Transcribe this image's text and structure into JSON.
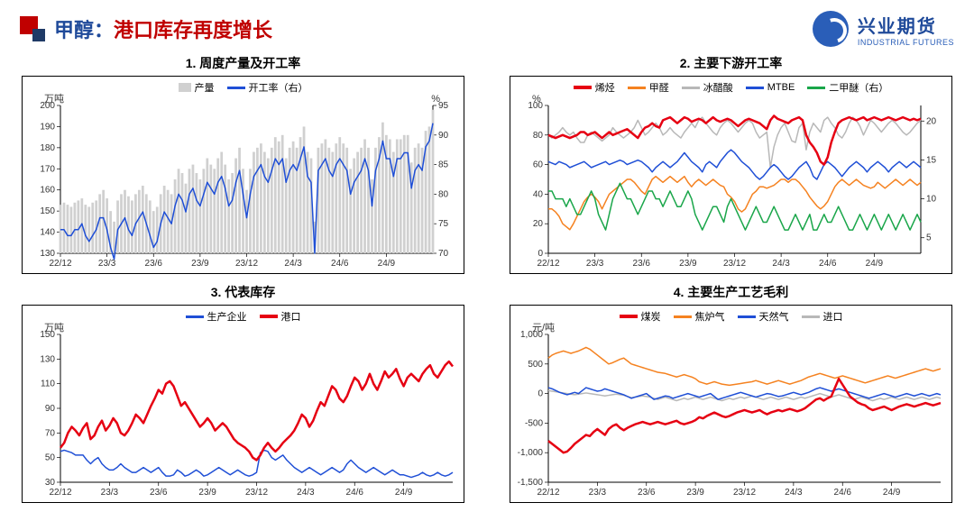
{
  "header": {
    "title_prefix": "甲醇：",
    "title_body": "港口库存再度增长",
    "logo_cn": "兴业期货",
    "logo_en": "INDUSTRIAL FUTURES"
  },
  "palette": {
    "blue": "#1f4fd6",
    "red": "#e60012",
    "orange": "#f58220",
    "grey": "#b8b8b8",
    "green": "#1aa64a",
    "lightgrey": "#d0d0d0",
    "darkblue": "#2050b0"
  },
  "x_ticks": [
    "22/12",
    "23/3",
    "23/6",
    "23/9",
    "23/12",
    "24/3",
    "24/6",
    "24/9"
  ],
  "x_count": 105,
  "chart1": {
    "title": "1. 周度产量及开工率",
    "legend": [
      {
        "label": "产量",
        "color": "#d0d0d0",
        "type": "bar"
      },
      {
        "label": "开工率（右）",
        "color": "#1f4fd6",
        "type": "line"
      }
    ],
    "left_unit": "万吨",
    "right_unit": "%",
    "left_ticks": [
      130,
      140,
      150,
      160,
      170,
      180,
      190,
      200
    ],
    "right_ticks": [
      70,
      75,
      80,
      85,
      90,
      95
    ],
    "left_range": [
      130,
      200
    ],
    "right_range": [
      70,
      95
    ],
    "bars": [
      153,
      154,
      153,
      152,
      154,
      155,
      156,
      153,
      152,
      154,
      155,
      158,
      160,
      156,
      150,
      145,
      155,
      158,
      160,
      157,
      155,
      158,
      160,
      162,
      158,
      155,
      150,
      152,
      158,
      162,
      160,
      158,
      165,
      170,
      168,
      163,
      170,
      172,
      168,
      165,
      170,
      175,
      172,
      170,
      175,
      178,
      172,
      165,
      168,
      175,
      180,
      170,
      160,
      170,
      178,
      180,
      182,
      178,
      175,
      180,
      185,
      183,
      186,
      175,
      180,
      183,
      180,
      185,
      190,
      178,
      175,
      145,
      180,
      182,
      184,
      180,
      178,
      182,
      185,
      182,
      180,
      170,
      175,
      178,
      180,
      184,
      180,
      165,
      180,
      185,
      192,
      186,
      184,
      178,
      184,
      184,
      186,
      186,
      173,
      180,
      182,
      180,
      188,
      190,
      198
    ],
    "line": [
      74,
      74,
      73,
      73,
      74,
      74,
      75,
      73,
      72,
      73,
      74,
      76,
      76,
      74,
      71,
      69,
      74,
      75,
      76,
      74,
      73,
      75,
      76,
      77,
      75,
      73,
      71,
      72,
      75,
      77,
      76,
      75,
      78,
      80,
      79,
      77,
      80,
      81,
      79,
      78,
      80,
      82,
      81,
      80,
      82,
      83,
      81,
      78,
      79,
      82,
      84,
      80,
      76,
      80,
      83,
      84,
      85,
      83,
      82,
      84,
      86,
      85,
      86,
      82,
      84,
      85,
      84,
      86,
      88,
      83,
      82,
      70,
      84,
      85,
      86,
      84,
      83,
      85,
      86,
      85,
      84,
      80,
      82,
      83,
      84,
      86,
      84,
      78,
      84,
      86,
      89,
      86,
      86,
      83,
      86,
      86,
      87,
      87,
      81,
      84,
      85,
      84,
      88,
      89,
      92
    ]
  },
  "chart2": {
    "title": "2. 主要下游开工率",
    "legend": [
      {
        "label": "烯烃",
        "color": "#e60012",
        "type": "line",
        "bold": true
      },
      {
        "label": "甲醛",
        "color": "#f58220",
        "type": "line"
      },
      {
        "label": "冰醋酸",
        "color": "#b8b8b8",
        "type": "line"
      },
      {
        "label": "MTBE",
        "color": "#1f4fd6",
        "type": "line"
      },
      {
        "label": "二甲醚（右）",
        "color": "#1aa64a",
        "type": "line"
      }
    ],
    "left_unit": "%",
    "right_unit": "",
    "left_ticks": [
      0,
      20,
      40,
      60,
      80,
      100
    ],
    "right_ticks": [
      5,
      10,
      15,
      20
    ],
    "left_range": [
      0,
      100
    ],
    "right_range": [
      3,
      22
    ],
    "series": {
      "red": [
        80,
        79,
        78,
        79,
        80,
        79,
        78,
        79,
        80,
        82,
        82,
        80,
        81,
        82,
        80,
        78,
        80,
        82,
        80,
        81,
        82,
        83,
        84,
        82,
        80,
        78,
        82,
        85,
        86,
        88,
        86,
        85,
        90,
        91,
        92,
        90,
        88,
        90,
        92,
        91,
        89,
        90,
        91,
        90,
        88,
        90,
        92,
        90,
        89,
        90,
        91,
        90,
        88,
        86,
        88,
        90,
        91,
        90,
        89,
        88,
        86,
        84,
        90,
        93,
        91,
        90,
        89,
        88,
        90,
        91,
        92,
        90,
        80,
        75,
        72,
        68,
        62,
        60,
        65,
        75,
        82,
        88,
        90,
        91,
        92,
        91,
        90,
        91,
        92,
        90,
        91,
        92,
        91,
        90,
        91,
        92,
        91,
        90,
        91,
        92,
        91,
        90,
        91,
        90,
        91
      ],
      "orange": [
        30,
        30,
        28,
        25,
        20,
        18,
        16,
        20,
        25,
        30,
        35,
        38,
        40,
        38,
        35,
        30,
        35,
        40,
        42,
        44,
        46,
        48,
        50,
        50,
        48,
        45,
        42,
        40,
        45,
        50,
        52,
        50,
        48,
        50,
        52,
        50,
        48,
        50,
        52,
        48,
        45,
        48,
        50,
        48,
        46,
        48,
        50,
        48,
        46,
        45,
        40,
        38,
        35,
        30,
        28,
        30,
        35,
        40,
        42,
        45,
        45,
        44,
        45,
        46,
        48,
        50,
        50,
        48,
        50,
        50,
        48,
        45,
        42,
        38,
        35,
        32,
        30,
        32,
        35,
        40,
        45,
        48,
        50,
        48,
        46,
        48,
        50,
        48,
        46,
        45,
        44,
        45,
        48,
        46,
        44,
        46,
        48,
        50,
        48,
        46,
        48,
        50,
        48,
        46,
        48
      ],
      "grey": [
        80,
        78,
        80,
        82,
        85,
        82,
        80,
        82,
        78,
        75,
        75,
        80,
        82,
        80,
        78,
        76,
        78,
        80,
        85,
        82,
        80,
        78,
        80,
        82,
        85,
        90,
        85,
        80,
        82,
        85,
        88,
        85,
        80,
        82,
        85,
        82,
        80,
        78,
        82,
        85,
        88,
        85,
        90,
        92,
        88,
        85,
        82,
        80,
        85,
        88,
        90,
        88,
        85,
        82,
        85,
        88,
        90,
        88,
        82,
        78,
        80,
        82,
        58,
        72,
        80,
        85,
        88,
        82,
        76,
        75,
        85,
        88,
        70,
        82,
        88,
        85,
        82,
        90,
        92,
        88,
        85,
        80,
        78,
        82,
        88,
        92,
        90,
        86,
        80,
        85,
        90,
        88,
        85,
        82,
        85,
        88,
        90,
        88,
        85,
        82,
        80,
        82,
        85,
        88,
        90
      ],
      "blue": [
        62,
        61,
        60,
        62,
        61,
        60,
        58,
        59,
        60,
        61,
        62,
        60,
        58,
        59,
        60,
        61,
        62,
        60,
        61,
        62,
        63,
        62,
        60,
        61,
        62,
        63,
        62,
        60,
        58,
        55,
        58,
        60,
        62,
        60,
        58,
        60,
        62,
        65,
        68,
        65,
        62,
        60,
        58,
        55,
        60,
        62,
        60,
        58,
        62,
        65,
        68,
        70,
        68,
        65,
        62,
        60,
        58,
        55,
        52,
        50,
        52,
        55,
        58,
        60,
        58,
        55,
        52,
        50,
        52,
        55,
        58,
        60,
        62,
        58,
        52,
        50,
        55,
        60,
        62,
        60,
        58,
        55,
        52,
        55,
        58,
        60,
        62,
        60,
        58,
        55,
        58,
        60,
        62,
        60,
        58,
        55,
        58,
        60,
        62,
        60,
        58,
        60,
        62,
        60,
        58
      ],
      "green": [
        11,
        11,
        10,
        10,
        10,
        9,
        10,
        9,
        8,
        8,
        9,
        10,
        11,
        10,
        8,
        7,
        6,
        8,
        10,
        11,
        12,
        11,
        10,
        10,
        9,
        8,
        9,
        10,
        11,
        11,
        10,
        10,
        9,
        10,
        11,
        10,
        9,
        9,
        10,
        11,
        10,
        8,
        7,
        6,
        7,
        8,
        9,
        9,
        8,
        7,
        9,
        10,
        9,
        8,
        7,
        6,
        7,
        8,
        9,
        8,
        7,
        7,
        8,
        9,
        8,
        7,
        6,
        6,
        7,
        8,
        7,
        6,
        7,
        8,
        6,
        6,
        7,
        8,
        7,
        7,
        8,
        9,
        8,
        7,
        6,
        6,
        7,
        8,
        7,
        6,
        7,
        8,
        7,
        6,
        7,
        8,
        7,
        6,
        7,
        8,
        7,
        6,
        7,
        8,
        7
      ]
    }
  },
  "chart3": {
    "title": "3. 代表库存",
    "legend": [
      {
        "label": "生产企业",
        "color": "#1f4fd6",
        "type": "line"
      },
      {
        "label": "港口",
        "color": "#e60012",
        "type": "line",
        "bold": true
      }
    ],
    "left_unit": "万吨",
    "left_ticks": [
      30,
      50,
      70,
      90,
      110,
      130,
      150
    ],
    "left_range": [
      30,
      150
    ],
    "series": {
      "blue": [
        55,
        56,
        55,
        54,
        52,
        52,
        52,
        48,
        45,
        48,
        50,
        45,
        42,
        40,
        40,
        42,
        45,
        42,
        40,
        38,
        38,
        40,
        42,
        40,
        38,
        40,
        42,
        38,
        35,
        35,
        36,
        40,
        38,
        35,
        36,
        38,
        40,
        38,
        35,
        36,
        38,
        40,
        42,
        40,
        38,
        36,
        38,
        40,
        38,
        36,
        35,
        36,
        38,
        54,
        56,
        55,
        50,
        48,
        50,
        52,
        48,
        45,
        42,
        40,
        38,
        40,
        42,
        40,
        38,
        36,
        38,
        40,
        42,
        40,
        38,
        40,
        45,
        48,
        45,
        42,
        40,
        38,
        40,
        42,
        40,
        38,
        36,
        38,
        40,
        38,
        36,
        36,
        35,
        34,
        35,
        36,
        38,
        36,
        35,
        36,
        38,
        36,
        35,
        36,
        38
      ],
      "red": [
        58,
        62,
        70,
        75,
        72,
        68,
        74,
        78,
        65,
        68,
        75,
        80,
        72,
        76,
        82,
        78,
        70,
        68,
        72,
        78,
        85,
        82,
        78,
        85,
        92,
        98,
        105,
        102,
        110,
        112,
        108,
        100,
        92,
        95,
        90,
        85,
        80,
        75,
        78,
        82,
        78,
        72,
        75,
        78,
        75,
        70,
        65,
        62,
        60,
        58,
        55,
        50,
        48,
        52,
        58,
        62,
        58,
        55,
        58,
        62,
        65,
        68,
        72,
        78,
        85,
        82,
        75,
        80,
        88,
        95,
        92,
        100,
        108,
        105,
        98,
        95,
        100,
        108,
        115,
        112,
        105,
        110,
        118,
        110,
        105,
        112,
        120,
        115,
        118,
        122,
        114,
        108,
        115,
        118,
        115,
        112,
        118,
        122,
        125,
        118,
        115,
        120,
        125,
        128,
        124
      ]
    }
  },
  "chart4": {
    "title": "4. 主要生产工艺毛利",
    "legend": [
      {
        "label": "煤炭",
        "color": "#e60012",
        "type": "line",
        "bold": true
      },
      {
        "label": "焦炉气",
        "color": "#f58220",
        "type": "line"
      },
      {
        "label": "天然气",
        "color": "#1f4fd6",
        "type": "line"
      },
      {
        "label": "进口",
        "color": "#b8b8b8",
        "type": "line"
      }
    ],
    "left_unit": "元/吨",
    "left_ticks": [
      -1500,
      -1000,
      -500,
      0,
      500,
      1000
    ],
    "left_range": [
      -1500,
      1000
    ],
    "series": {
      "red": [
        -800,
        -850,
        -900,
        -950,
        -1000,
        -980,
        -920,
        -850,
        -800,
        -750,
        -700,
        -720,
        -650,
        -600,
        -650,
        -700,
        -600,
        -550,
        -520,
        -580,
        -620,
        -580,
        -550,
        -520,
        -500,
        -480,
        -500,
        -520,
        -500,
        -480,
        -500,
        -520,
        -500,
        -480,
        -460,
        -500,
        -520,
        -500,
        -480,
        -450,
        -400,
        -420,
        -380,
        -350,
        -320,
        -350,
        -380,
        -400,
        -380,
        -350,
        -320,
        -300,
        -280,
        -300,
        -320,
        -300,
        -280,
        -320,
        -350,
        -320,
        -300,
        -280,
        -300,
        -280,
        -260,
        -280,
        -300,
        -280,
        -250,
        -200,
        -150,
        -100,
        -80,
        -120,
        -80,
        -50,
        100,
        250,
        150,
        50,
        -50,
        -100,
        -150,
        -180,
        -200,
        -250,
        -280,
        -260,
        -240,
        -220,
        -250,
        -280,
        -250,
        -220,
        -200,
        -180,
        -200,
        -220,
        -200,
        -180,
        -160,
        -180,
        -200,
        -180,
        -160
      ],
      "orange": [
        600,
        650,
        680,
        700,
        720,
        700,
        680,
        700,
        720,
        750,
        780,
        750,
        700,
        650,
        600,
        550,
        500,
        520,
        550,
        580,
        600,
        550,
        500,
        480,
        460,
        440,
        420,
        400,
        380,
        360,
        350,
        340,
        320,
        300,
        280,
        300,
        320,
        300,
        280,
        250,
        200,
        180,
        160,
        180,
        200,
        180,
        160,
        150,
        140,
        150,
        160,
        170,
        180,
        190,
        200,
        220,
        200,
        180,
        160,
        180,
        200,
        220,
        200,
        180,
        160,
        180,
        200,
        220,
        250,
        280,
        300,
        320,
        340,
        320,
        300,
        280,
        260,
        280,
        300,
        280,
        260,
        240,
        220,
        200,
        180,
        200,
        220,
        240,
        260,
        280,
        300,
        280,
        260,
        280,
        300,
        320,
        340,
        360,
        380,
        400,
        420,
        400,
        380,
        400,
        420
      ],
      "blue": [
        100,
        80,
        50,
        20,
        0,
        -20,
        0,
        20,
        0,
        50,
        100,
        80,
        60,
        40,
        50,
        80,
        60,
        40,
        20,
        0,
        -20,
        -50,
        -80,
        -60,
        -40,
        -20,
        0,
        -50,
        -100,
        -80,
        -60,
        -40,
        -50,
        -80,
        -60,
        -40,
        -20,
        0,
        -20,
        -40,
        -60,
        -40,
        -20,
        0,
        -50,
        -100,
        -80,
        -60,
        -40,
        -20,
        0,
        20,
        0,
        -20,
        -40,
        -60,
        -40,
        -20,
        0,
        -10,
        -30,
        -50,
        -40,
        -20,
        0,
        20,
        0,
        -20,
        0,
        20,
        50,
        80,
        100,
        80,
        60,
        40,
        60,
        80,
        60,
        40,
        20,
        0,
        -20,
        -40,
        -60,
        -80,
        -60,
        -40,
        -20,
        0,
        -20,
        -40,
        -60,
        -40,
        -20,
        0,
        -20,
        -40,
        -20,
        0,
        -20,
        -40,
        -20,
        0,
        -20
      ],
      "grey": [
        50,
        40,
        30,
        20,
        10,
        0,
        -10,
        -20,
        -10,
        0,
        10,
        0,
        -10,
        -20,
        -30,
        -40,
        -30,
        -20,
        -10,
        -20,
        -30,
        -50,
        -70,
        -60,
        -50,
        -40,
        -50,
        -60,
        -80,
        -100,
        -80,
        -60,
        -80,
        -100,
        -120,
        -100,
        -80,
        -100,
        -80,
        -60,
        -80,
        -100,
        -80,
        -60,
        -80,
        -100,
        -120,
        -100,
        -80,
        -100,
        -80,
        -60,
        -80,
        -60,
        -40,
        -60,
        -80,
        -100,
        -80,
        -60,
        -80,
        -100,
        -80,
        -60,
        -80,
        -100,
        -80,
        -60,
        -80,
        -60,
        -40,
        -20,
        0,
        -20,
        -40,
        -60,
        -40,
        -20,
        -40,
        -60,
        -80,
        -100,
        -80,
        -60,
        -80,
        -100,
        -120,
        -100,
        -80,
        -100,
        -80,
        -60,
        -80,
        -100,
        -80,
        -60,
        -80,
        -100,
        -80,
        -60,
        -80,
        -100,
        -80,
        -60,
        -80
      ]
    }
  }
}
